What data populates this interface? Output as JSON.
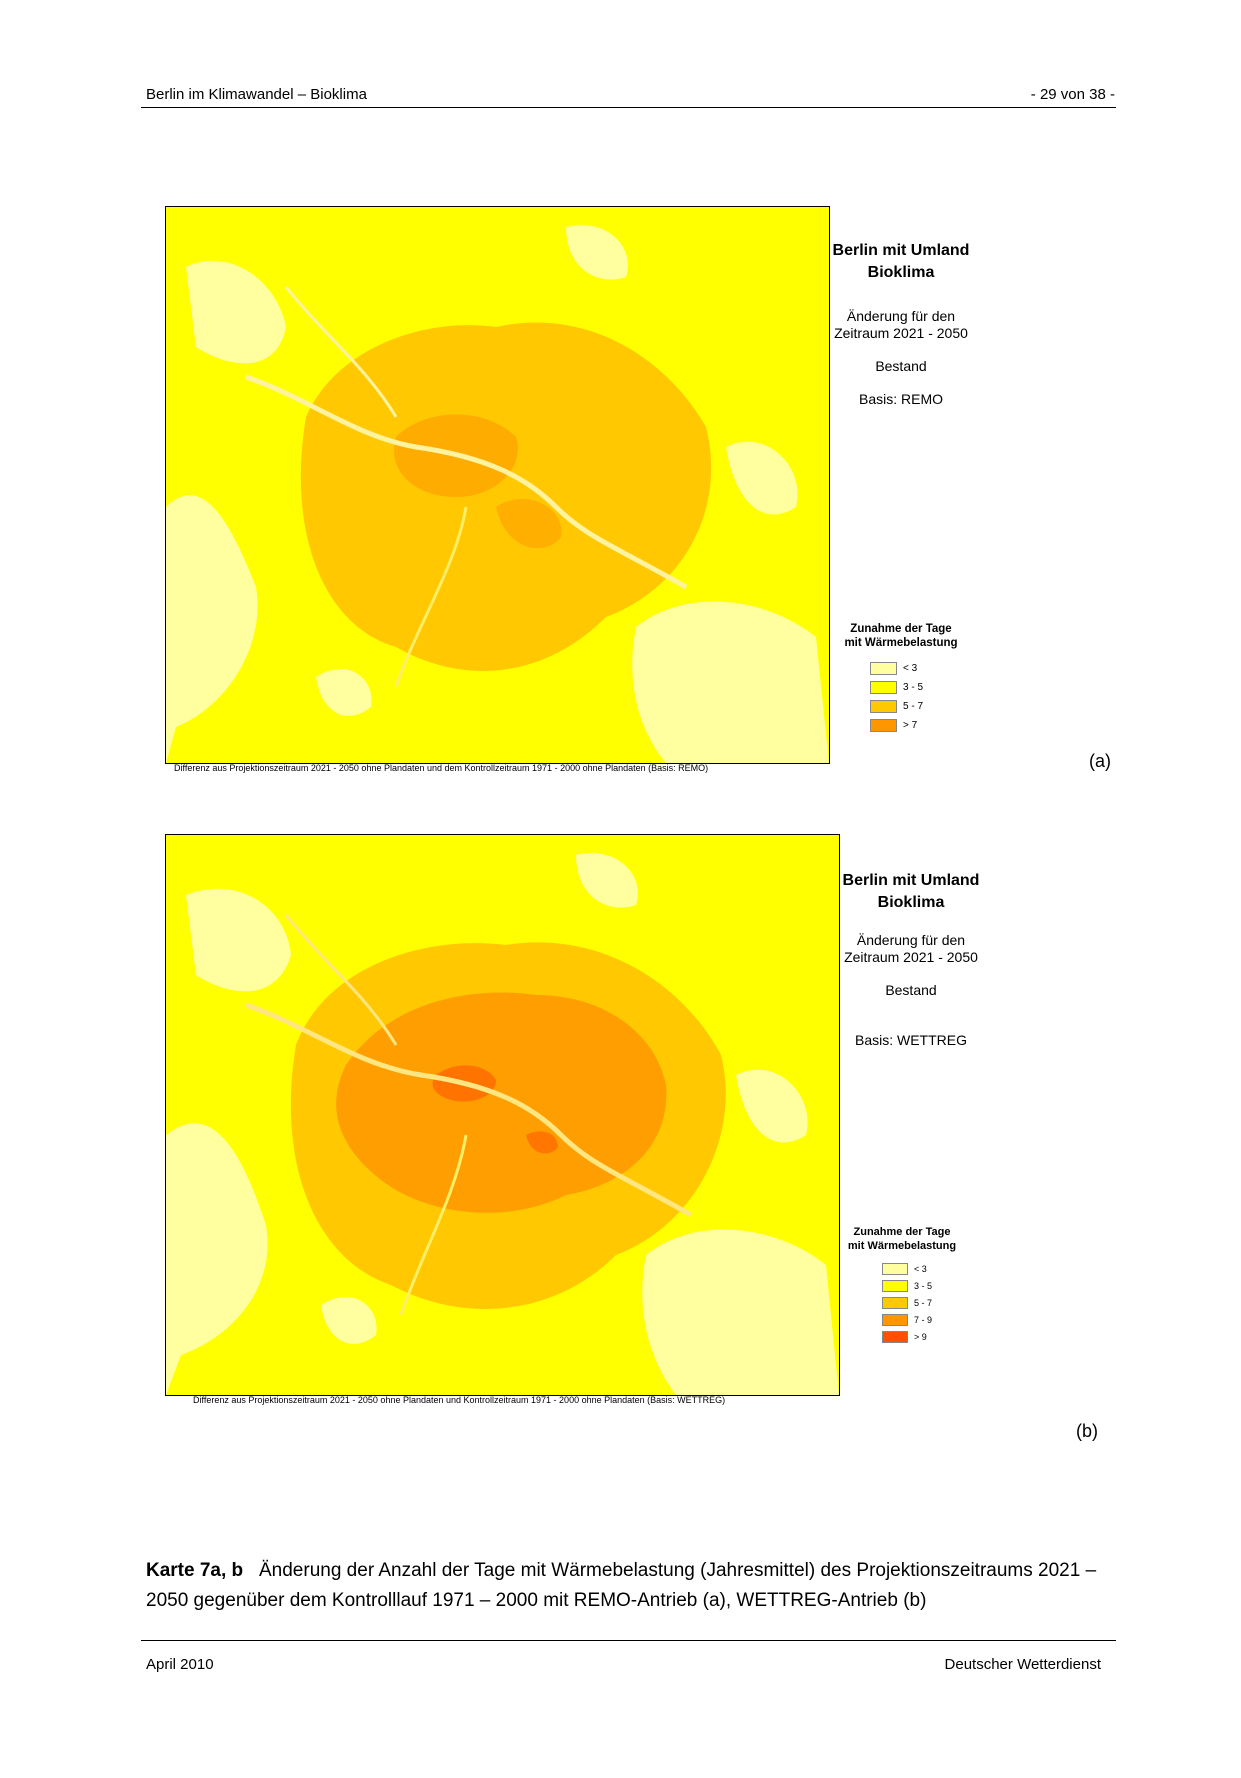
{
  "header": {
    "left": "Berlin im Klimawandel – Bioklima",
    "right": "- 29 von 38 -"
  },
  "map_a": {
    "title_line1": "Berlin mit Umland",
    "title_line2": "Bioklima",
    "change_line1": "Änderung für den",
    "change_line2": "Zeitraum 2021 - 2050",
    "status": "Bestand",
    "basis": "Basis: REMO",
    "legend_title_line1": "Zunahme der Tage",
    "legend_title_line2": "mit Wärmebelastung",
    "legend": [
      {
        "label": "< 3",
        "color": "#ffffa0"
      },
      {
        "label": "3 - 5",
        "color": "#ffff00"
      },
      {
        "label": "5 - 7",
        "color": "#ffc800"
      },
      {
        "label": "> 7",
        "color": "#ff9600"
      }
    ],
    "source_note": "Differenz aus Projektionszeitraum 2021 - 2050 ohne Plandaten und dem Kontrollzeitraum 1971 - 2000 ohne Plandaten (Basis: REMO)",
    "panel_label": "(a)"
  },
  "map_b": {
    "title_line1": "Berlin mit Umland",
    "title_line2": "Bioklima",
    "change_line1": "Änderung für den",
    "change_line2": "Zeitraum 2021 - 2050",
    "status": "Bestand",
    "basis": "Basis: WETTREG",
    "legend_title_line1": "Zunahme der Tage",
    "legend_title_line2": "mit Wärmebelastung",
    "legend": [
      {
        "label": "< 3",
        "color": "#ffffa0"
      },
      {
        "label": "3 - 5",
        "color": "#ffff00"
      },
      {
        "label": "5 - 7",
        "color": "#ffc800"
      },
      {
        "label": "7 - 9",
        "color": "#ff9600"
      },
      {
        "label": "> 9",
        "color": "#ff5000"
      }
    ],
    "source_note": "Differenz aus Projektionszeitraum 2021 - 2050 ohne Plandaten  und Kontrollzeitraum 1971 - 2000 ohne Plandaten (Basis: WETTREG)",
    "panel_label": "(b)"
  },
  "caption": {
    "label": "Karte 7a, b",
    "text": "Änderung der Anzahl der Tage mit Wärmebelastung (Jahresmittel) des Projektionszeitraums 2021 – 2050 gegenüber dem Kontrolllauf 1971 – 2000 mit REMO-Antrieb (a), WETTREG-Antrieb (b)"
  },
  "footer": {
    "left": "April 2010",
    "right": "Deutscher Wetterdienst"
  }
}
